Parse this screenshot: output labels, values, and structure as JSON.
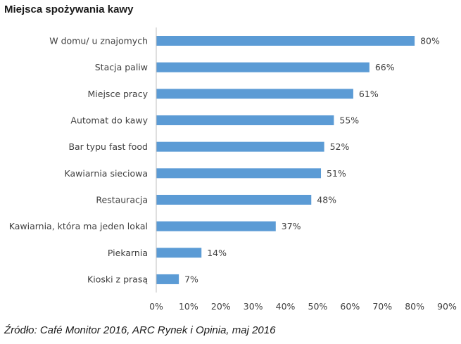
{
  "title": "Miejsca spożywania kawy",
  "source": "Źródło: Café Monitor 2016, ARC Rynek i Opinia, maj 2016",
  "colors": {
    "bar": "#5b9bd5",
    "axis": "#bfbfbf",
    "text": "#404040"
  },
  "chart_data": {
    "type": "bar",
    "orientation": "horizontal",
    "categories": [
      "W domu/ u znajomych",
      "Stacja paliw",
      "Miejsce pracy",
      "Automat do kawy",
      "Bar typu fast food",
      "Kawiarnia sieciowa",
      "Restauracja",
      "Kawiarnia, która ma jeden lokal",
      "Piekarnia",
      "Kioski z prasą"
    ],
    "values": [
      80,
      66,
      61,
      55,
      52,
      51,
      48,
      37,
      14,
      7
    ],
    "value_labels": [
      "80%",
      "66%",
      "61%",
      "55%",
      "52%",
      "51%",
      "48%",
      "37%",
      "14%",
      "7%"
    ],
    "xlim": [
      0,
      90
    ],
    "xticks": [
      "0%",
      "10%",
      "20%",
      "30%",
      "40%",
      "50%",
      "60%",
      "70%",
      "80%",
      "90%"
    ],
    "grid": false,
    "legend": "none"
  }
}
